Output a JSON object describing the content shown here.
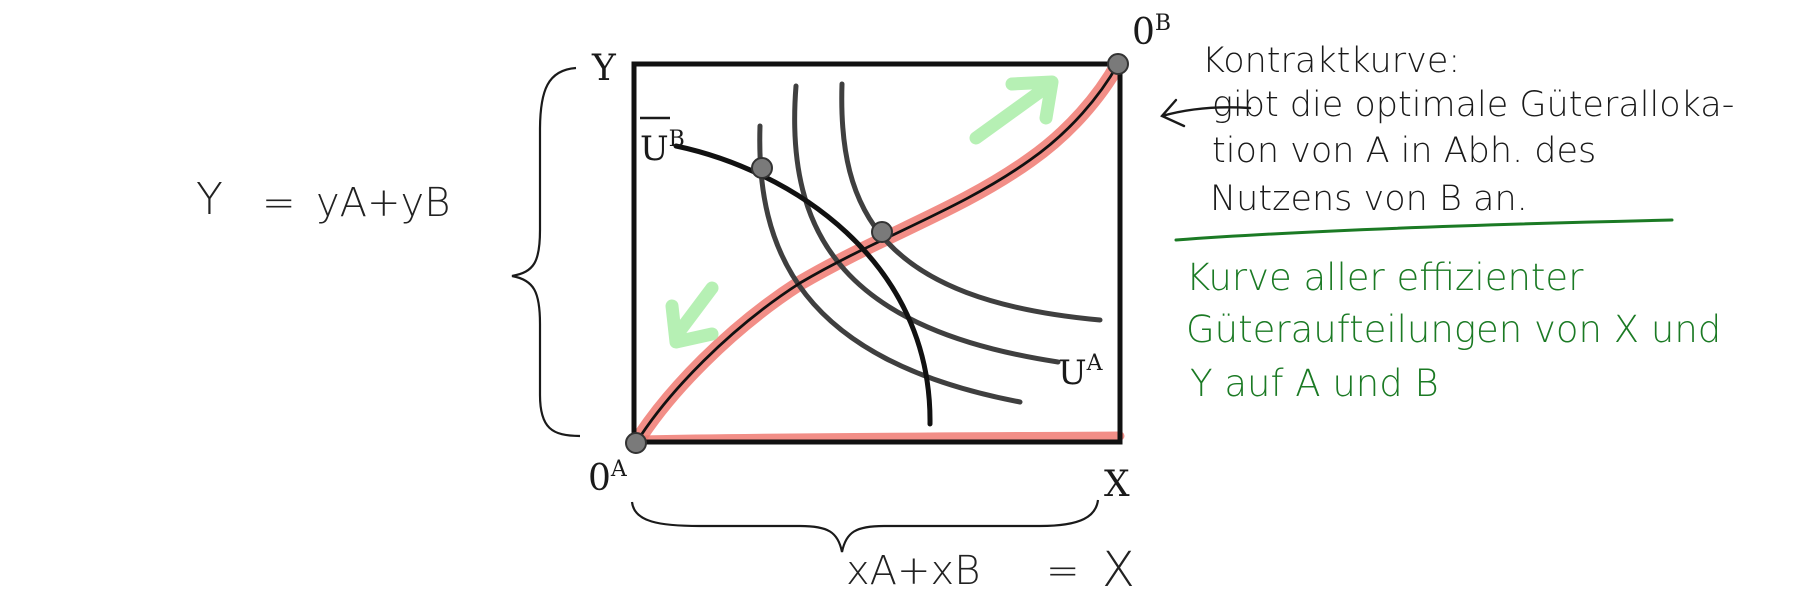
{
  "colors": {
    "ink": "#1a1a1a",
    "curve_gray": "#3f3f3f",
    "highlight_red": "#f07a72",
    "annotation_green": "#1b7a24",
    "arrow_green": "#b6f0b4",
    "point_gray": "#7a7a7a"
  },
  "diagram": {
    "labels": {
      "y_axis": "Y",
      "x_axis": "X",
      "origin_a": "0A",
      "origin_a_main": "0",
      "origin_a_sup": "A",
      "origin_b_main": "0",
      "origin_b_sup": "B",
      "ub_main": "U",
      "ub_sup": "B",
      "ua_main": "U",
      "ua_sup": "A"
    }
  },
  "handwriting": {
    "y_equation": {
      "lhs": "Y",
      "eq": "=",
      "rhs": "yA+yB"
    },
    "x_equation": {
      "lhs": "xA+xB",
      "eq": "=",
      "rhs": "X"
    },
    "black_note": [
      "Kontraktkurve:",
      "gibt die optimale Güteralloka-",
      "tion von A in Abh. des",
      "Nutzens von B an."
    ],
    "green_note": [
      "Kurve aller effizienter",
      "Güteraufteilungen von X und",
      "Y auf A und B"
    ]
  }
}
